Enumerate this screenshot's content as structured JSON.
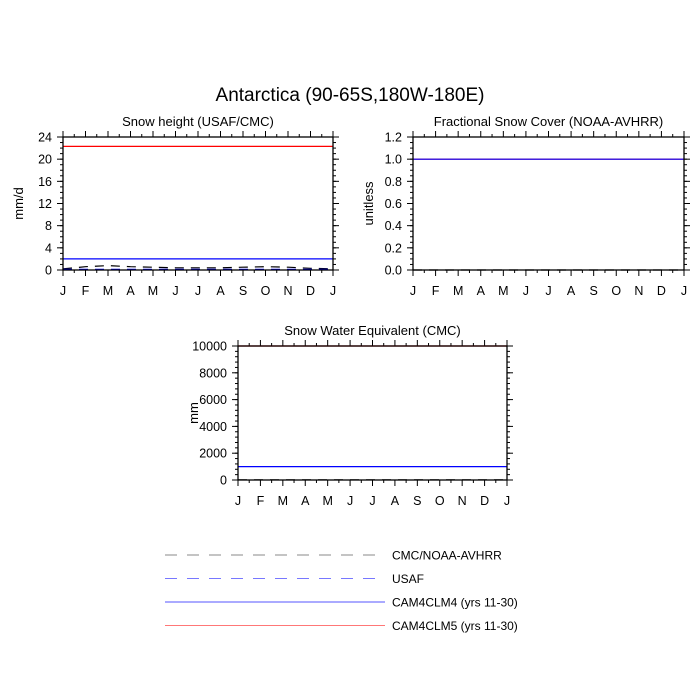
{
  "figure": {
    "title": "Antarctica (90-65S,180W-180E)"
  },
  "chart_data": [
    {
      "type": "line",
      "title": "Snow height (USAF/CMC)",
      "xlabel": "",
      "ylabel": "mm/d",
      "categories": [
        "J",
        "F",
        "M",
        "A",
        "M",
        "J",
        "J",
        "A",
        "S",
        "O",
        "N",
        "D",
        "J"
      ],
      "ylim": [
        0,
        24
      ],
      "yticks": [
        "0",
        "4",
        "8",
        "12",
        "16",
        "20",
        "24"
      ],
      "yminor_step": 1,
      "grid": false,
      "series": [
        {
          "name": "CMC/NOAA-AVHRR",
          "values": [
            0.2,
            0.6,
            0.8,
            0.6,
            0.5,
            0.4,
            0.4,
            0.4,
            0.5,
            0.6,
            0.5,
            0.3,
            0.2
          ]
        },
        {
          "name": "USAF",
          "values": [
            0.1,
            0.1,
            0.1,
            0.1,
            0.1,
            0.1,
            0.1,
            0.1,
            0.1,
            0.1,
            0.1,
            0.1,
            0.1
          ]
        },
        {
          "name": "CAM4CLM4 (yrs 11-30)",
          "values": [
            2,
            2,
            2,
            2,
            2,
            2,
            2,
            2,
            2,
            2,
            2,
            2,
            2
          ]
        },
        {
          "name": "CAM4CLM5 (yrs 11-30)",
          "values": [
            22.3,
            22.3,
            22.3,
            22.3,
            22.3,
            22.3,
            22.3,
            22.3,
            22.3,
            22.3,
            22.3,
            22.3,
            22.3
          ]
        }
      ]
    },
    {
      "type": "line",
      "title": "Fractional Snow Cover (NOAA-AVHRR)",
      "xlabel": "",
      "ylabel": "unitless",
      "categories": [
        "J",
        "F",
        "M",
        "A",
        "M",
        "J",
        "J",
        "A",
        "S",
        "O",
        "N",
        "D",
        "J"
      ],
      "ylim": [
        0,
        1.2
      ],
      "yticks": [
        "0.0",
        "0.2",
        "0.4",
        "0.6",
        "0.8",
        "1.0",
        "1.2"
      ],
      "yminor_step": 0.05,
      "grid": false,
      "series": [
        {
          "name": "CMC/NOAA-AVHRR",
          "values": [
            0,
            0,
            0,
            0,
            0,
            0,
            0,
            0,
            0,
            0,
            0,
            0,
            0
          ]
        },
        {
          "name": "CAM4CLM5 (yrs 11-30)",
          "values": [
            1,
            1,
            1,
            1,
            1,
            1,
            1,
            1,
            1,
            1,
            1,
            1,
            1
          ]
        },
        {
          "name": "CAM4CLM4 (yrs 11-30)",
          "values": [
            1,
            1,
            1,
            1,
            1,
            1,
            1,
            1,
            1,
            1,
            1,
            1,
            1
          ]
        }
      ]
    },
    {
      "type": "line",
      "title": "Snow Water Equivalent (CMC)",
      "xlabel": "",
      "ylabel": "mm",
      "categories": [
        "J",
        "F",
        "M",
        "A",
        "M",
        "J",
        "J",
        "A",
        "S",
        "O",
        "N",
        "D",
        "J"
      ],
      "ylim": [
        0,
        10000
      ],
      "yticks": [
        "0",
        "2000",
        "4000",
        "6000",
        "8000",
        "10000"
      ],
      "yminor_step": 400,
      "grid": false,
      "series": [
        {
          "name": "CMC/NOAA-AVHRR",
          "values": [
            5,
            5,
            5,
            5,
            5,
            5,
            5,
            5,
            5,
            5,
            5,
            5,
            5
          ]
        },
        {
          "name": "CAM4CLM4 (yrs 11-30)",
          "values": [
            1000,
            1000,
            1000,
            1000,
            1000,
            1000,
            1000,
            1000,
            1000,
            1000,
            1000,
            1000,
            1000
          ]
        },
        {
          "name": "CAM4CLM5 (yrs 11-30)",
          "values": [
            10000,
            10000,
            10000,
            10000,
            10000,
            10000,
            10000,
            10000,
            10000,
            10000,
            10000,
            10000,
            10000
          ]
        }
      ]
    }
  ],
  "legend": {
    "placement": "bottom-center",
    "items": [
      {
        "label": "CMC/NOAA-AVHRR",
        "color": "#000000",
        "style": "dashed"
      },
      {
        "label": "USAF",
        "color": "#0000ff",
        "style": "dashed"
      },
      {
        "label": "CAM4CLM4 (yrs 11-30)",
        "color": "#0000ff",
        "style": "solid"
      },
      {
        "label": "CAM4CLM5 (yrs 11-30)",
        "color": "#ff0000",
        "style": "solid"
      }
    ]
  },
  "series_styles": {
    "CMC/NOAA-AVHRR": {
      "color": "#000000",
      "dash": "dashed"
    },
    "USAF": {
      "color": "#0000ff",
      "dash": "dashed"
    },
    "CAM4CLM4 (yrs 11-30)": {
      "color": "#0000ff",
      "dash": "solid"
    },
    "CAM4CLM5 (yrs 11-30)": {
      "color": "#ff0000",
      "dash": "solid"
    }
  }
}
